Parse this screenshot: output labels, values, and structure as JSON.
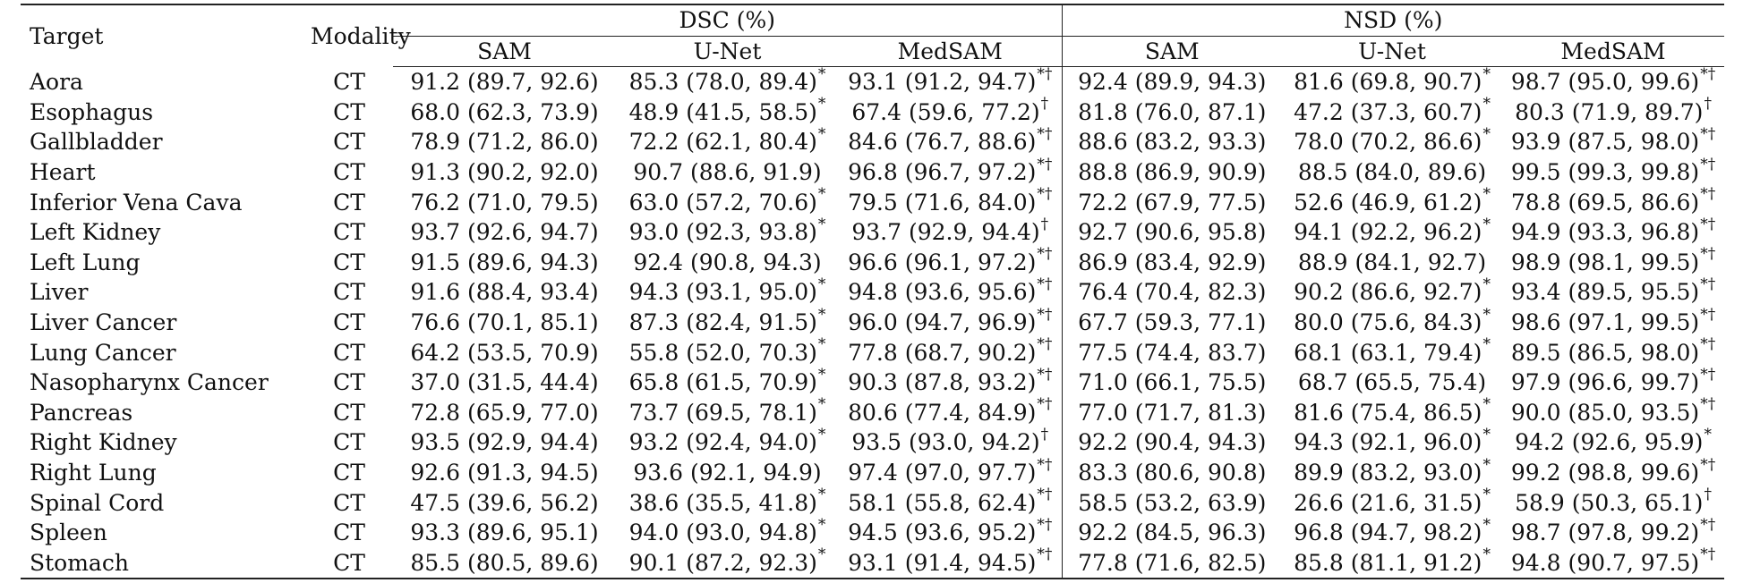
{
  "headers": {
    "target": "Target",
    "modality": "Modality",
    "dsc": "DSC (%)",
    "nsd": "NSD (%)",
    "methods": [
      "SAM",
      "U-Net",
      "MedSAM"
    ]
  },
  "rows": [
    {
      "target": "Aora",
      "modality": "CT",
      "dsc": [
        {
          "v": "91.2 (89.7, 92.6)",
          "m": ""
        },
        {
          "v": "85.3 (78.0, 89.4)",
          "m": "*"
        },
        {
          "v": "93.1 (91.2, 94.7)",
          "m": "*†"
        }
      ],
      "nsd": [
        {
          "v": "92.4 (89.9, 94.3)",
          "m": ""
        },
        {
          "v": "81.6 (69.8, 90.7)",
          "m": "*"
        },
        {
          "v": "98.7 (95.0, 99.6)",
          "m": "*†"
        }
      ]
    },
    {
      "target": "Esophagus",
      "modality": "CT",
      "dsc": [
        {
          "v": "68.0 (62.3, 73.9)",
          "m": ""
        },
        {
          "v": "48.9 (41.5, 58.5)",
          "m": "*"
        },
        {
          "v": "67.4 (59.6, 77.2)",
          "m": "†"
        }
      ],
      "nsd": [
        {
          "v": "81.8 (76.0, 87.1)",
          "m": ""
        },
        {
          "v": "47.2 (37.3, 60.7)",
          "m": "*"
        },
        {
          "v": "80.3 (71.9, 89.7)",
          "m": "†"
        }
      ]
    },
    {
      "target": "Gallbladder",
      "modality": "CT",
      "dsc": [
        {
          "v": "78.9 (71.2, 86.0)",
          "m": ""
        },
        {
          "v": "72.2 (62.1, 80.4)",
          "m": "*"
        },
        {
          "v": "84.6 (76.7, 88.6)",
          "m": "*†"
        }
      ],
      "nsd": [
        {
          "v": "88.6 (83.2, 93.3)",
          "m": ""
        },
        {
          "v": "78.0 (70.2, 86.6)",
          "m": "*"
        },
        {
          "v": "93.9 (87.5, 98.0)",
          "m": "*†"
        }
      ]
    },
    {
      "target": "Heart",
      "modality": "CT",
      "dsc": [
        {
          "v": "91.3 (90.2, 92.0)",
          "m": ""
        },
        {
          "v": "90.7 (88.6, 91.9)",
          "m": ""
        },
        {
          "v": "96.8 (96.7, 97.2)",
          "m": "*†"
        }
      ],
      "nsd": [
        {
          "v": "88.8 (86.9, 90.9)",
          "m": ""
        },
        {
          "v": "88.5 (84.0, 89.6)",
          "m": ""
        },
        {
          "v": "99.5 (99.3, 99.8)",
          "m": "*†"
        }
      ]
    },
    {
      "target": "Inferior Vena Cava",
      "modality": "CT",
      "dsc": [
        {
          "v": "76.2 (71.0, 79.5)",
          "m": ""
        },
        {
          "v": "63.0 (57.2, 70.6)",
          "m": "*"
        },
        {
          "v": "79.5 (71.6, 84.0)",
          "m": "*†"
        }
      ],
      "nsd": [
        {
          "v": "72.2 (67.9, 77.5)",
          "m": ""
        },
        {
          "v": "52.6 (46.9, 61.2)",
          "m": "*"
        },
        {
          "v": "78.8 (69.5, 86.6)",
          "m": "*†"
        }
      ]
    },
    {
      "target": "Left Kidney",
      "modality": "CT",
      "dsc": [
        {
          "v": "93.7 (92.6, 94.7)",
          "m": ""
        },
        {
          "v": "93.0 (92.3, 93.8)",
          "m": "*"
        },
        {
          "v": "93.7 (92.9, 94.4)",
          "m": "†"
        }
      ],
      "nsd": [
        {
          "v": "92.7 (90.6, 95.8)",
          "m": ""
        },
        {
          "v": "94.1 (92.2, 96.2)",
          "m": "*"
        },
        {
          "v": "94.9 (93.3, 96.8)",
          "m": "*†"
        }
      ]
    },
    {
      "target": "Left Lung",
      "modality": "CT",
      "dsc": [
        {
          "v": "91.5 (89.6, 94.3)",
          "m": ""
        },
        {
          "v": "92.4 (90.8, 94.3)",
          "m": ""
        },
        {
          "v": "96.6 (96.1, 97.2)",
          "m": "*†"
        }
      ],
      "nsd": [
        {
          "v": "86.9 (83.4, 92.9)",
          "m": ""
        },
        {
          "v": "88.9 (84.1, 92.7)",
          "m": ""
        },
        {
          "v": "98.9 (98.1, 99.5)",
          "m": "*†"
        }
      ]
    },
    {
      "target": "Liver",
      "modality": "CT",
      "dsc": [
        {
          "v": "91.6 (88.4, 93.4)",
          "m": ""
        },
        {
          "v": "94.3 (93.1, 95.0)",
          "m": "*"
        },
        {
          "v": "94.8 (93.6, 95.6)",
          "m": "*†"
        }
      ],
      "nsd": [
        {
          "v": "76.4 (70.4, 82.3)",
          "m": ""
        },
        {
          "v": "90.2 (86.6, 92.7)",
          "m": "*"
        },
        {
          "v": "93.4 (89.5, 95.5)",
          "m": "*†"
        }
      ]
    },
    {
      "target": "Liver Cancer",
      "modality": "CT",
      "dsc": [
        {
          "v": "76.6 (70.1, 85.1)",
          "m": ""
        },
        {
          "v": "87.3 (82.4, 91.5)",
          "m": "*"
        },
        {
          "v": "96.0 (94.7, 96.9)",
          "m": "*†"
        }
      ],
      "nsd": [
        {
          "v": "67.7 (59.3, 77.1)",
          "m": ""
        },
        {
          "v": "80.0 (75.6, 84.3)",
          "m": "*"
        },
        {
          "v": "98.6 (97.1, 99.5)",
          "m": "*†"
        }
      ]
    },
    {
      "target": "Lung Cancer",
      "modality": "CT",
      "dsc": [
        {
          "v": "64.2 (53.5, 70.9)",
          "m": ""
        },
        {
          "v": "55.8 (52.0, 70.3)",
          "m": "*"
        },
        {
          "v": "77.8 (68.7, 90.2)",
          "m": "*†"
        }
      ],
      "nsd": [
        {
          "v": "77.5 (74.4, 83.7)",
          "m": ""
        },
        {
          "v": "68.1 (63.1, 79.4)",
          "m": "*"
        },
        {
          "v": "89.5 (86.5, 98.0)",
          "m": "*†"
        }
      ]
    },
    {
      "target": "Nasopharynx Cancer",
      "modality": "CT",
      "dsc": [
        {
          "v": "37.0 (31.5, 44.4)",
          "m": ""
        },
        {
          "v": "65.8 (61.5, 70.9)",
          "m": "*"
        },
        {
          "v": "90.3 (87.8, 93.2)",
          "m": "*†"
        }
      ],
      "nsd": [
        {
          "v": "71.0 (66.1, 75.5)",
          "m": ""
        },
        {
          "v": "68.7 (65.5, 75.4)",
          "m": ""
        },
        {
          "v": "97.9 (96.6, 99.7)",
          "m": "*†"
        }
      ]
    },
    {
      "target": "Pancreas",
      "modality": "CT",
      "dsc": [
        {
          "v": "72.8 (65.9, 77.0)",
          "m": ""
        },
        {
          "v": "73.7 (69.5, 78.1)",
          "m": "*"
        },
        {
          "v": "80.6 (77.4, 84.9)",
          "m": "*†"
        }
      ],
      "nsd": [
        {
          "v": "77.0 (71.7, 81.3)",
          "m": ""
        },
        {
          "v": "81.6 (75.4, 86.5)",
          "m": "*"
        },
        {
          "v": "90.0 (85.0, 93.5)",
          "m": "*†"
        }
      ]
    },
    {
      "target": "Right Kidney",
      "modality": "CT",
      "dsc": [
        {
          "v": "93.5 (92.9, 94.4)",
          "m": ""
        },
        {
          "v": "93.2 (92.4, 94.0)",
          "m": "*"
        },
        {
          "v": "93.5 (93.0, 94.2)",
          "m": "†"
        }
      ],
      "nsd": [
        {
          "v": "92.2 (90.4, 94.3)",
          "m": ""
        },
        {
          "v": "94.3 (92.1, 96.0)",
          "m": "*"
        },
        {
          "v": "94.2 (92.6, 95.9)",
          "m": "*"
        }
      ]
    },
    {
      "target": "Right Lung",
      "modality": "CT",
      "dsc": [
        {
          "v": "92.6 (91.3, 94.5)",
          "m": ""
        },
        {
          "v": "93.6 (92.1, 94.9)",
          "m": ""
        },
        {
          "v": "97.4 (97.0, 97.7)",
          "m": "*†"
        }
      ],
      "nsd": [
        {
          "v": "83.3 (80.6, 90.8)",
          "m": ""
        },
        {
          "v": "89.9 (83.2, 93.0)",
          "m": "*"
        },
        {
          "v": "99.2 (98.8, 99.6)",
          "m": "*†"
        }
      ]
    },
    {
      "target": "Spinal Cord",
      "modality": "CT",
      "dsc": [
        {
          "v": "47.5 (39.6, 56.2)",
          "m": ""
        },
        {
          "v": "38.6 (35.5, 41.8)",
          "m": "*"
        },
        {
          "v": "58.1 (55.8, 62.4)",
          "m": "*†"
        }
      ],
      "nsd": [
        {
          "v": "58.5 (53.2, 63.9)",
          "m": ""
        },
        {
          "v": "26.6 (21.6, 31.5)",
          "m": "*"
        },
        {
          "v": "58.9 (50.3, 65.1)",
          "m": "†"
        }
      ]
    },
    {
      "target": "Spleen",
      "modality": "CT",
      "dsc": [
        {
          "v": "93.3 (89.6, 95.1)",
          "m": ""
        },
        {
          "v": "94.0 (93.0, 94.8)",
          "m": "*"
        },
        {
          "v": "94.5 (93.6, 95.2)",
          "m": "*†"
        }
      ],
      "nsd": [
        {
          "v": "92.2 (84.5, 96.3)",
          "m": ""
        },
        {
          "v": "96.8 (94.7, 98.2)",
          "m": "*"
        },
        {
          "v": "98.7 (97.8, 99.2)",
          "m": "*†"
        }
      ]
    },
    {
      "target": "Stomach",
      "modality": "CT",
      "dsc": [
        {
          "v": "85.5 (80.5, 89.6)",
          "m": ""
        },
        {
          "v": "90.1 (87.2, 92.3)",
          "m": "*"
        },
        {
          "v": "93.1 (91.4, 94.5)",
          "m": "*†"
        }
      ],
      "nsd": [
        {
          "v": "77.8 (71.6, 82.5)",
          "m": ""
        },
        {
          "v": "85.8 (81.1, 91.2)",
          "m": "*"
        },
        {
          "v": "94.8 (90.7, 97.5)",
          "m": "*†"
        }
      ]
    }
  ]
}
